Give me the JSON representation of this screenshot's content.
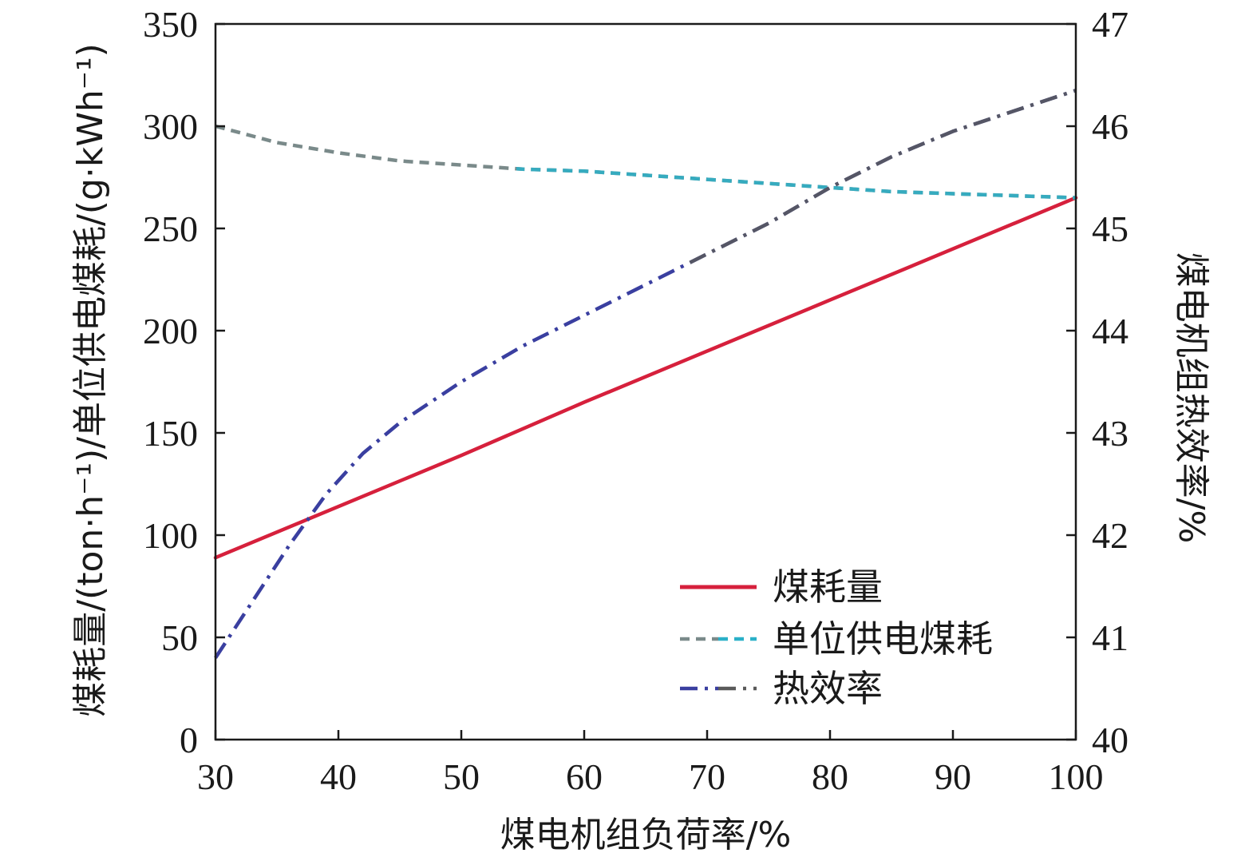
{
  "chart_data": {
    "type": "line",
    "xlabel": "煤电机组负荷率/%",
    "ylabel_left": "煤耗量/(ton·h⁻¹)/单位供电煤耗/(g·kWh⁻¹)",
    "ylabel_right": "煤电机组热效率/%",
    "xlim": [
      30,
      100
    ],
    "ylim_left": [
      0,
      350
    ],
    "ylim_right": [
      40,
      47
    ],
    "x_ticks": [
      30,
      40,
      50,
      60,
      70,
      80,
      90,
      100
    ],
    "y_left_ticks": [
      0,
      50,
      100,
      150,
      200,
      250,
      300,
      350
    ],
    "y_right_ticks": [
      40,
      41,
      42,
      43,
      44,
      45,
      46,
      47
    ],
    "grid": false,
    "legend_position": "lower-right",
    "series": [
      {
        "name": "煤耗量",
        "axis": "left",
        "style": "solid",
        "color": "#d6203c",
        "x": [
          30,
          40,
          50,
          60,
          70,
          80,
          90,
          100
        ],
        "y": [
          89,
          114,
          139,
          165,
          190,
          215,
          240,
          265
        ]
      },
      {
        "name": "单位供电煤耗",
        "axis": "left",
        "style": "dashed",
        "color": "#7a8a8a",
        "color_alt": "#2ab0c8",
        "x": [
          30,
          35,
          40,
          45,
          50,
          55,
          60,
          65,
          70,
          75,
          80,
          85,
          90,
          95,
          100
        ],
        "y": [
          300,
          292,
          287,
          283,
          281,
          279,
          278,
          276,
          274,
          272,
          270,
          268,
          267,
          266,
          265
        ]
      },
      {
        "name": "热效率",
        "axis": "right",
        "style": "dashdot",
        "color": "#3a3fa0",
        "color_alt": "#5a5a5a",
        "x": [
          30,
          33,
          36,
          39,
          42,
          45,
          50,
          55,
          60,
          65,
          70,
          75,
          80,
          85,
          90,
          95,
          100
        ],
        "y": [
          40.8,
          41.35,
          41.9,
          42.4,
          42.8,
          43.1,
          43.5,
          43.85,
          44.15,
          44.45,
          44.75,
          45.05,
          45.4,
          45.7,
          45.95,
          46.15,
          46.35
        ]
      }
    ]
  }
}
